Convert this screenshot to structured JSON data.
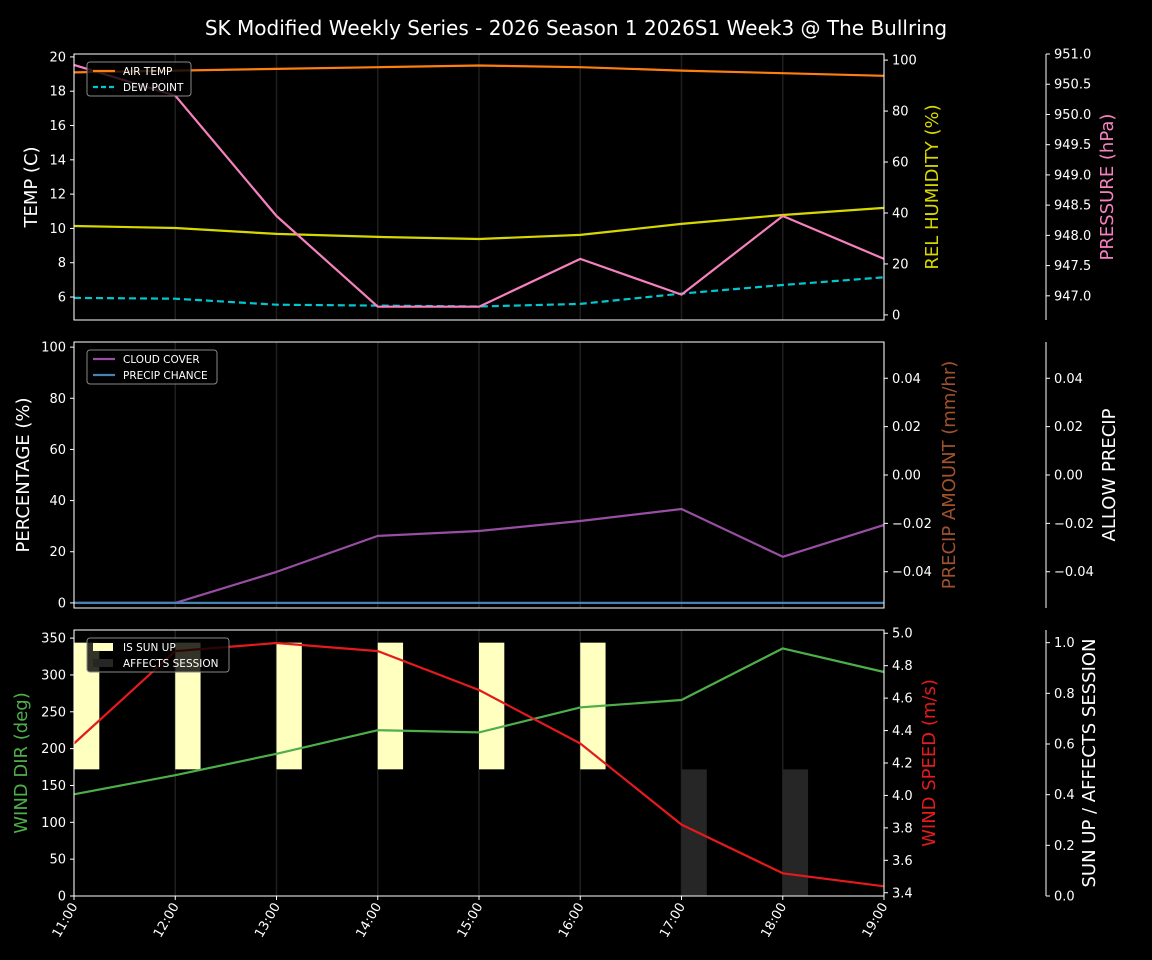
{
  "chart_data": {
    "type": "line",
    "title": "SK Modified Weekly Series - 2026 Season 1 2026S1 Week3 @ The Bullring",
    "x": [
      "11:00",
      "12:00",
      "13:00",
      "14:00",
      "15:00",
      "16:00",
      "17:00",
      "18:00",
      "19:00"
    ],
    "grid": "vertical",
    "panels": [
      {
        "legend_placement": "upper-left",
        "axes": [
          {
            "label": "TEMP (C)",
            "color": "#ffffff",
            "range": [
              4.66,
              20.17
            ],
            "ticks": [
              6,
              8,
              10,
              12,
              14,
              16,
              18,
              20
            ],
            "decimals": 0
          },
          {
            "label": "REL HUMIDITY (%)",
            "color": "#d8d800",
            "range": [
              -2,
              102.4
            ],
            "ticks": [
              0,
              20,
              40,
              60,
              80,
              100
            ],
            "decimals": 0
          },
          {
            "label": "PRESSURE (hPa)",
            "color": "#f781bf",
            "range": [
              946.6,
              951.0
            ],
            "ticks": [
              947.0,
              947.5,
              948.0,
              948.5,
              949.0,
              949.5,
              950.0,
              950.5,
              951.0
            ],
            "decimals": 1
          }
        ],
        "series": [
          {
            "name": "AIR TEMP",
            "axis": 0,
            "color": "#ff7f0e",
            "style": "solid",
            "legend": true,
            "values": [
              19.1,
              19.2,
              19.3,
              19.4,
              19.5,
              19.4,
              19.2,
              19.05,
              18.9
            ]
          },
          {
            "name": "DEW POINT",
            "axis": 0,
            "color": "#00c8d0",
            "style": "dashed",
            "legend": true,
            "values": [
              5.95,
              5.9,
              5.55,
              5.5,
              5.45,
              5.6,
              6.2,
              6.7,
              7.15
            ]
          },
          {
            "axis": 1,
            "color": "#d8d800",
            "style": "solid",
            "legend": false,
            "values": [
              34.9,
              34.1,
              31.8,
              30.6,
              29.8,
              31.4,
              35.7,
              39.2,
              42.0
            ]
          },
          {
            "axis": 2,
            "color": "#f781bf",
            "style": "solid",
            "legend": false,
            "values": [
              950.82,
              950.31,
              948.32,
              946.82,
              946.82,
              947.61,
              947.02,
              948.32,
              947.61
            ]
          }
        ]
      },
      {
        "legend_placement": "upper-left",
        "axes": [
          {
            "label": "PERCENTAGE (%)",
            "color": "#ffffff",
            "range": [
              -2,
              102
            ],
            "ticks": [
              0,
              20,
              40,
              60,
              80,
              100
            ],
            "decimals": 0
          },
          {
            "label": "PRECIP AMOUNT (mm/hr)",
            "color": "#a0522d",
            "range": [
              -0.055,
              0.055
            ],
            "ticks": [
              -0.04,
              -0.02,
              0.0,
              0.02,
              0.04
            ],
            "decimals": 2
          },
          {
            "label": "ALLOW PRECIP",
            "color": "#ffffff",
            "range": [
              -0.055,
              0.055
            ],
            "ticks": [
              -0.04,
              -0.02,
              0.0,
              0.02,
              0.04
            ],
            "decimals": 2
          }
        ],
        "series": [
          {
            "name": "CLOUD COVER",
            "axis": 0,
            "color": "#984ea3",
            "style": "solid",
            "legend": true,
            "values": [
              0,
              0,
              12.1,
              26.2,
              28.1,
              32.0,
              36.7,
              18.0,
              30.5
            ]
          },
          {
            "name": "PRECIP CHANCE",
            "axis": 0,
            "color": "#4682b4",
            "style": "solid",
            "legend": true,
            "values": [
              0,
              0,
              0,
              0,
              0,
              0,
              0,
              0,
              0
            ]
          }
        ]
      },
      {
        "legend_placement": "upper-left",
        "axes": [
          {
            "label": "WIND DIR (deg)",
            "color": "#4daf4a",
            "range": [
              0,
              361
            ],
            "ticks": [
              0,
              50,
              100,
              150,
              200,
              250,
              300,
              350
            ],
            "decimals": 0
          },
          {
            "label": "WIND SPEED (m/s)",
            "color": "#e41a1c",
            "range": [
              3.38,
              5.02
            ],
            "ticks": [
              3.4,
              3.6,
              3.8,
              4.0,
              4.2,
              4.4,
              4.6,
              4.8,
              5.0
            ],
            "decimals": 1
          },
          {
            "label": "SUN UP / AFFECTS SESSION",
            "color": "#ffffff",
            "range": [
              0,
              1.05
            ],
            "ticks": [
              0.0,
              0.2,
              0.4,
              0.6,
              0.8,
              1.0
            ],
            "decimals": 1
          }
        ],
        "bars": [
          {
            "name": "IS SUN UP",
            "axis": 2,
            "color": "#ffffc0",
            "base": 0.5,
            "values": [
              1,
              1,
              1,
              1,
              1,
              1,
              0,
              0,
              0
            ]
          },
          {
            "name": "AFFECTS SESSION",
            "axis": 2,
            "color": "#262626",
            "base": 0.0,
            "values": [
              0,
              0,
              0,
              0,
              0,
              0,
              1,
              1,
              0
            ]
          }
        ],
        "series": [
          {
            "axis": 0,
            "color": "#4daf4a",
            "style": "solid",
            "legend": false,
            "values": [
              138,
              164,
              193,
              225,
              222,
              256,
              266,
              336,
              304
            ]
          },
          {
            "axis": 1,
            "color": "#e41a1c",
            "style": "solid",
            "legend": false,
            "values": [
              4.32,
              4.89,
              4.94,
              4.89,
              4.65,
              4.32,
              3.82,
              3.52,
              3.44
            ]
          }
        ]
      }
    ]
  }
}
